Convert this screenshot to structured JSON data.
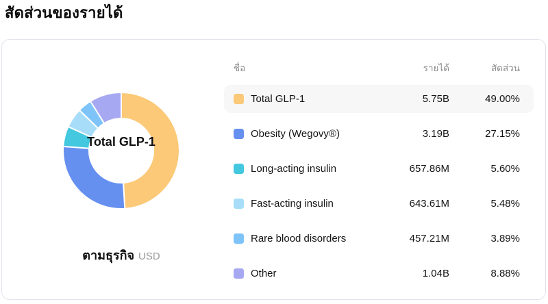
{
  "page": {
    "title": "สัดส่วนของรายได้"
  },
  "table": {
    "headers": {
      "name": "ชื่อ",
      "revenue": "รายได้",
      "share": "สัดส่วน"
    }
  },
  "colors": {
    "card_border": "#e3e3ee",
    "row_highlight": "#f7f7f8",
    "header_text": "#8c8c8c"
  },
  "chart_data": {
    "type": "pie",
    "subtype": "donut",
    "title": "สัดส่วนของรายได้",
    "group_label": "ตามธุรกิจ",
    "currency": "USD",
    "center_label": "Total GLP-1",
    "legend_position": "right",
    "start_angle_deg": -90,
    "direction": "clockwise",
    "segments": [
      {
        "name": "Total GLP-1",
        "revenue": "5.75B",
        "share_pct": 49.0,
        "share_label": "49.00%",
        "color": "#FBC977",
        "highlighted": true
      },
      {
        "name": "Obesity (Wegovy®)",
        "revenue": "3.19B",
        "share_pct": 27.15,
        "share_label": "27.15%",
        "color": "#6690F0",
        "highlighted": false
      },
      {
        "name": "Long-acting insulin",
        "revenue": "657.86M",
        "share_pct": 5.6,
        "share_label": "5.60%",
        "color": "#43C8DF",
        "highlighted": false
      },
      {
        "name": "Fast-acting insulin",
        "revenue": "643.61M",
        "share_pct": 5.48,
        "share_label": "5.48%",
        "color": "#A7DDF9",
        "highlighted": false
      },
      {
        "name": "Rare blood disorders",
        "revenue": "457.21M",
        "share_pct": 3.89,
        "share_label": "3.89%",
        "color": "#7EC4F8",
        "highlighted": false
      },
      {
        "name": "Other",
        "revenue": "1.04B",
        "share_pct": 8.88,
        "share_label": "8.88%",
        "color": "#A6A8F2",
        "highlighted": false
      }
    ]
  }
}
